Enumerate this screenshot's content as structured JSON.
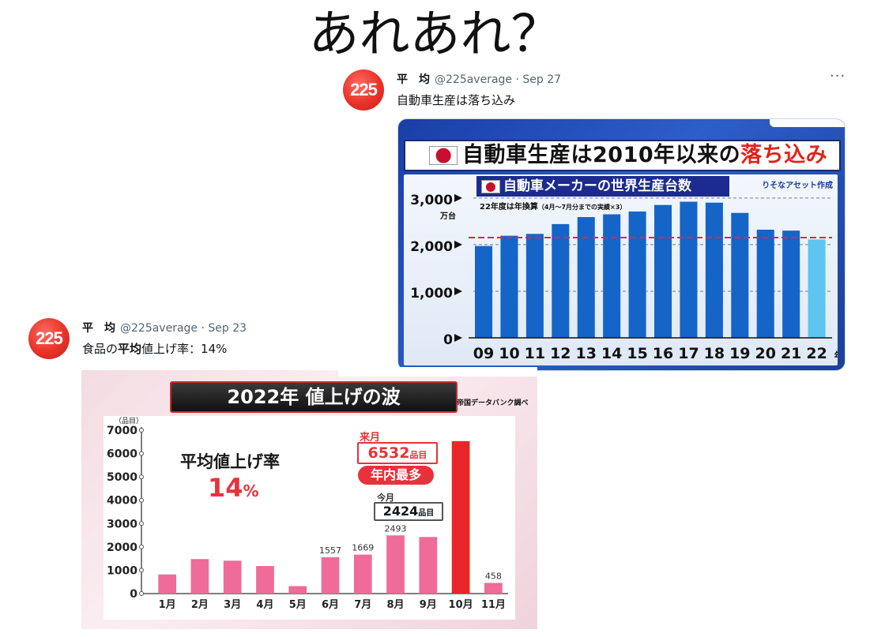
{
  "headline": "あれあれ？",
  "tweet1": {
    "avatar_text": "225",
    "display_name": "平　均",
    "meta": "@225average · Sep 27",
    "more_label": "···",
    "text": "自動車生産は落ち込み"
  },
  "tweet2": {
    "avatar_text": "225",
    "display_name": "平　均",
    "meta": "@225average · Sep 23",
    "text_prefix": "食品の",
    "text_bold": "平均",
    "text_suffix": "値上げ率：14%"
  },
  "chart1": {
    "headline_main": "自動車生産は2010年以来の",
    "headline_red": "落ち込み",
    "subtitle": "自動車メーカーの世界生産台数",
    "source": "りそなアセット作成",
    "note_main": "22年度は年換算",
    "note_small": "（4月〜7月分までの実績×3）",
    "y_unit": "万台",
    "x_suffix": "年度",
    "colors": {
      "bar": "#1565c8",
      "bar_highlight": "#5ec4f0",
      "reference_line": "#d32f2f"
    }
  },
  "chart2": {
    "title": "2022年 値上げの波",
    "source": "帝国データバンク調べ",
    "y_unit": "（品目）",
    "avg_label": "平均値上げ率",
    "avg_value": "14",
    "avg_unit": "%",
    "next_month_label": "来月",
    "next_month_value": "6532",
    "next_month_unit": "品目",
    "year_max_label": "年内最多",
    "this_month_label": "今月",
    "this_month_value": "2424",
    "this_month_unit": "品目",
    "colors": {
      "bar": "#ee6b9a",
      "bar_highlight": "#e8262a"
    }
  },
  "chart_data": [
    {
      "type": "bar",
      "title": "自動車メーカーの世界生産台数",
      "categories": [
        "09",
        "10",
        "11",
        "12",
        "13",
        "14",
        "15",
        "16",
        "17",
        "18",
        "19",
        "20",
        "21",
        "22"
      ],
      "values": [
        1970,
        2190,
        2230,
        2440,
        2590,
        2650,
        2710,
        2850,
        2920,
        2900,
        2680,
        2320,
        2300,
        2110
      ],
      "y_ticks": [
        "0",
        "1,000",
        "2,000",
        "3,000"
      ],
      "ylim": [
        0,
        3200
      ],
      "reference_line": 2150,
      "highlight_index": 13,
      "grid": true
    },
    {
      "type": "bar",
      "title": "2022年 値上げの波",
      "categories": [
        "1月",
        "2月",
        "3月",
        "4月",
        "5月",
        "6月",
        "7月",
        "8月",
        "9月",
        "10月",
        "11月"
      ],
      "values": [
        820,
        1480,
        1410,
        1180,
        320,
        1557,
        1669,
        2493,
        2424,
        6532,
        458
      ],
      "data_labels": [
        "",
        "",
        "",
        "",
        "",
        "1557",
        "1669",
        "2493",
        "",
        "",
        "458"
      ],
      "y_ticks": [
        "0",
        "1000",
        "2000",
        "3000",
        "4000",
        "5000",
        "6000",
        "7000"
      ],
      "ylim": [
        0,
        7000
      ],
      "highlight_index": 9,
      "grid": false
    }
  ]
}
